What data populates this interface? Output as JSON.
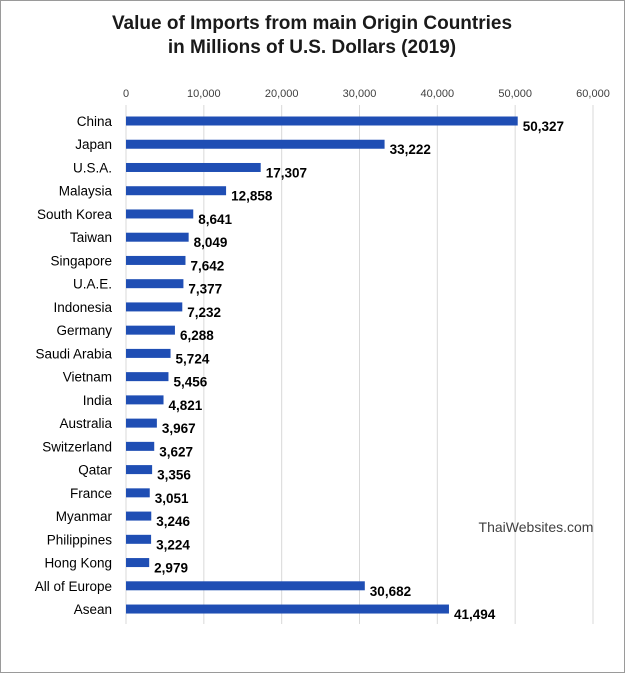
{
  "chart_data": {
    "type": "bar",
    "orientation": "horizontal",
    "title": "Value of Imports from main Origin Countries in Millions of U.S. Dollars (2019)",
    "title_lines": [
      "Value of Imports from main Origin Countries",
      "in Millions of U.S. Dollars (2019)"
    ],
    "categories": [
      "China",
      "Japan",
      "U.S.A.",
      "Malaysia",
      "South Korea",
      "Taiwan",
      "Singapore",
      "U.A.E.",
      "Indonesia",
      "Germany",
      "Saudi Arabia",
      "Vietnam",
      "India",
      "Australia",
      "Switzerland",
      "Qatar",
      "France",
      "Myanmar",
      "Philippines",
      "Hong Kong",
      "All of Europe",
      "Asean"
    ],
    "values": [
      50327,
      33222,
      17307,
      12858,
      8641,
      8049,
      7642,
      7377,
      7232,
      6288,
      5724,
      5456,
      4821,
      3967,
      3627,
      3356,
      3051,
      3246,
      3224,
      2979,
      30682,
      41494
    ],
    "xlim": [
      0,
      60000
    ],
    "xticks": [
      0,
      10000,
      20000,
      30000,
      40000,
      50000,
      60000
    ],
    "xlabel": "",
    "ylabel": "",
    "grid": true,
    "axis_position": "top",
    "bar_color": "#1f4eb4",
    "watermark": "ThaiWebsites.com"
  }
}
